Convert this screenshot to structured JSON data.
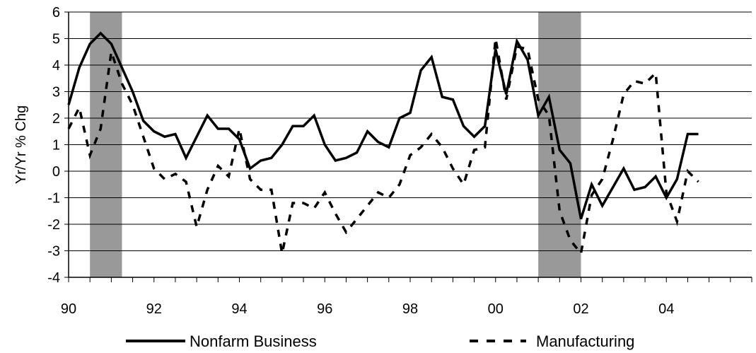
{
  "chart_data": {
    "type": "line",
    "title": "",
    "xlabel": "",
    "ylabel": "Yr/Yr % Chg",
    "ylim": [
      -4,
      6
    ],
    "xlim": [
      1990,
      2006
    ],
    "grid": true,
    "legend_position": "bottom",
    "x_ticks": [
      {
        "value": 1990,
        "label": "90"
      },
      {
        "value": 1992,
        "label": "92"
      },
      {
        "value": 1994,
        "label": "94"
      },
      {
        "value": 1996,
        "label": "96"
      },
      {
        "value": 1998,
        "label": "98"
      },
      {
        "value": 2000,
        "label": "00"
      },
      {
        "value": 2002,
        "label": "02"
      },
      {
        "value": 2004,
        "label": "04"
      }
    ],
    "y_ticks": [
      6,
      5,
      4,
      3,
      2,
      1,
      0,
      -1,
      -2,
      -3,
      -4
    ],
    "recessions": [
      {
        "start": 1990.5,
        "end": 1991.25
      },
      {
        "start": 2001.0,
        "end": 2002.0
      }
    ],
    "colors": {
      "recession": "#999999",
      "line": "#000000",
      "grid": "#000000"
    },
    "series": [
      {
        "name": "Nonfarm Business",
        "style": "solid",
        "x": [
          1990.0,
          1990.25,
          1990.5,
          1990.75,
          1991.0,
          1991.25,
          1991.5,
          1991.75,
          1992.0,
          1992.25,
          1992.5,
          1992.75,
          1993.0,
          1993.25,
          1993.5,
          1993.75,
          1994.0,
          1994.25,
          1994.5,
          1994.75,
          1995.0,
          1995.25,
          1995.5,
          1995.75,
          1996.0,
          1996.25,
          1996.5,
          1996.75,
          1997.0,
          1997.25,
          1997.5,
          1997.75,
          1998.0,
          1998.25,
          1998.5,
          1998.75,
          1999.0,
          1999.25,
          1999.5,
          1999.75,
          2000.0,
          2000.25,
          2000.5,
          2000.75,
          2001.0,
          2001.25,
          2001.5,
          2001.75,
          2002.0,
          2002.25,
          2002.5,
          2002.75,
          2003.0,
          2003.25,
          2003.5,
          2003.75,
          2004.0,
          2004.25,
          2004.5,
          2004.75
        ],
        "values": [
          2.5,
          3.9,
          4.8,
          5.2,
          4.8,
          3.9,
          3.0,
          1.9,
          1.5,
          1.3,
          1.4,
          0.5,
          1.3,
          2.1,
          1.6,
          1.6,
          1.2,
          0.1,
          0.4,
          0.5,
          1.0,
          1.7,
          1.7,
          2.1,
          1.0,
          0.4,
          0.5,
          0.7,
          1.5,
          1.1,
          0.9,
          2.0,
          2.2,
          3.8,
          4.3,
          2.8,
          2.7,
          1.7,
          1.3,
          1.7,
          4.6,
          2.9,
          4.9,
          4.2,
          2.1,
          2.8,
          0.8,
          0.3,
          -1.8,
          -0.5,
          -1.3,
          -0.6,
          0.1,
          -0.7,
          -0.6,
          -0.2,
          -1.0,
          -0.3,
          1.4,
          1.4
        ]
      },
      {
        "name": "Manufacturing",
        "style": "dashed",
        "x": [
          1990.0,
          1990.25,
          1990.5,
          1990.75,
          1991.0,
          1991.25,
          1991.5,
          1991.75,
          1992.0,
          1992.25,
          1992.5,
          1992.75,
          1993.0,
          1993.25,
          1993.5,
          1993.75,
          1994.0,
          1994.25,
          1994.5,
          1994.75,
          1995.0,
          1995.25,
          1995.5,
          1995.75,
          1996.0,
          1996.25,
          1996.5,
          1996.75,
          1997.0,
          1997.25,
          1997.5,
          1997.75,
          1998.0,
          1998.25,
          1998.5,
          1998.75,
          1999.0,
          1999.25,
          1999.5,
          1999.75,
          2000.0,
          2000.25,
          2000.5,
          2000.75,
          2001.0,
          2001.25,
          2001.5,
          2001.75,
          2002.0,
          2002.25,
          2002.5,
          2002.75,
          2003.0,
          2003.25,
          2003.5,
          2003.75,
          2004.0,
          2004.25,
          2004.5,
          2004.75
        ],
        "values": [
          1.6,
          2.4,
          0.6,
          1.6,
          4.5,
          3.3,
          2.5,
          1.3,
          0.1,
          -0.3,
          -0.1,
          -0.4,
          -2.1,
          -0.7,
          0.2,
          -0.2,
          1.6,
          -0.3,
          -0.7,
          -0.7,
          -3.1,
          -1.2,
          -1.2,
          -1.4,
          -0.8,
          -1.6,
          -2.3,
          -1.8,
          -1.3,
          -0.8,
          -1.0,
          -0.5,
          0.6,
          0.9,
          1.4,
          0.9,
          0.1,
          -0.5,
          0.8,
          0.9,
          5.0,
          2.7,
          4.7,
          4.6,
          2.7,
          2.1,
          -1.5,
          -2.6,
          -3.1,
          -0.9,
          -0.3,
          1.2,
          2.9,
          3.4,
          3.3,
          3.7,
          -0.8,
          -1.9,
          0.0,
          -0.4
        ]
      }
    ]
  }
}
